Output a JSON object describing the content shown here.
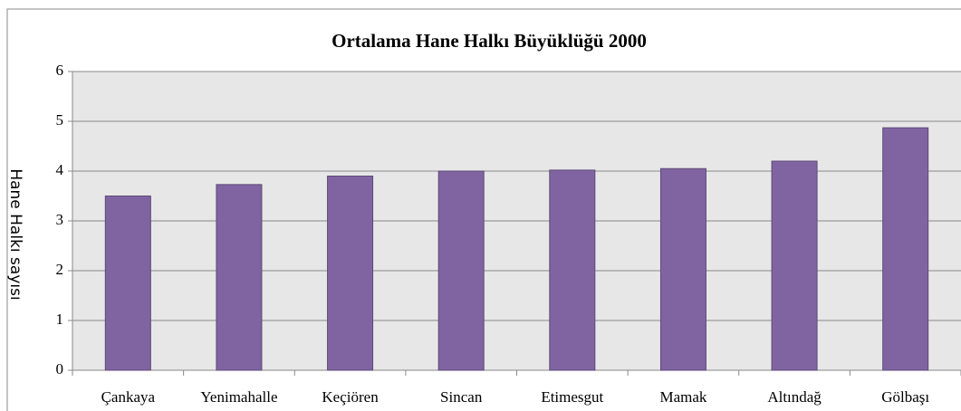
{
  "chart_data": {
    "type": "bar",
    "title": "Ortalama Hane Halkı Büyüklüğü 2000",
    "y_label": "Hane Halkı sayısı",
    "categories": [
      "Çankaya",
      "Yenimahalle",
      "Keçiören",
      "Sincan",
      "Etimesgut",
      "Mamak",
      "Altındağ",
      "Gölbaşı"
    ],
    "values": [
      3.5,
      3.73,
      3.9,
      4.0,
      4.02,
      4.05,
      4.2,
      4.87
    ],
    "color": "#8064a2",
    "ylim": [
      0,
      6
    ],
    "yticks": [
      0,
      1,
      2,
      3,
      4,
      5,
      6
    ],
    "grid": true
  }
}
